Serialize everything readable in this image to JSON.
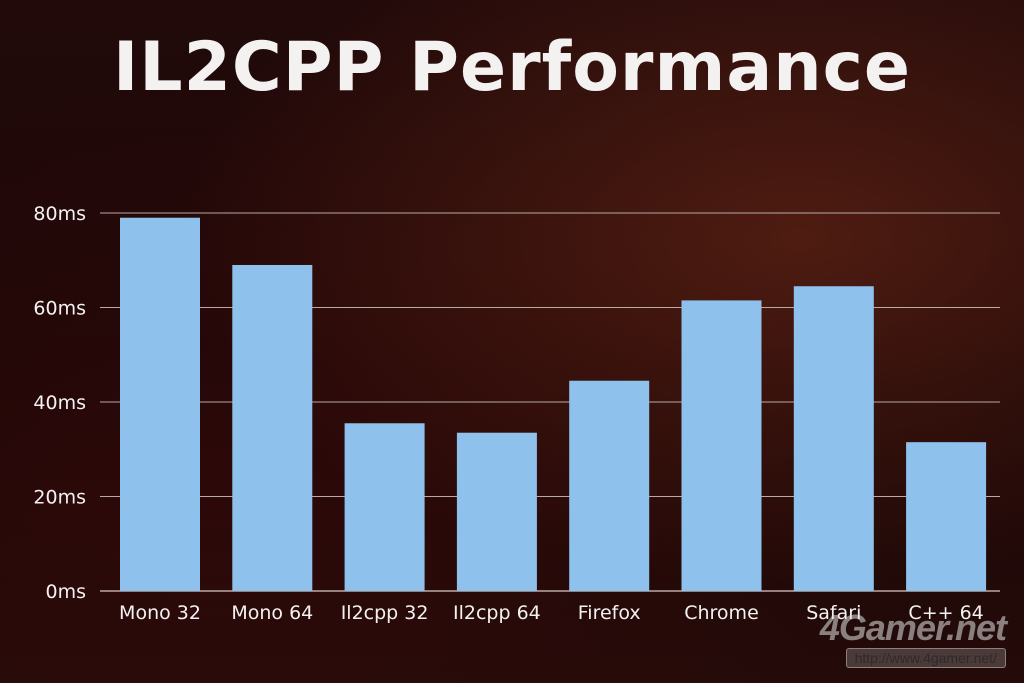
{
  "title": "IL2CPP Performance",
  "watermark": {
    "logo": "4Gamer.net",
    "url": "http://www.4gamer.net/"
  },
  "colors": {
    "bar": "#8ec2ec",
    "grid": "#b9a9a7",
    "text": "#f4f1f1"
  },
  "chart_data": {
    "type": "bar",
    "title": "IL2CPP Performance",
    "xlabel": "",
    "ylabel": "",
    "categories": [
      "Mono 32",
      "Mono 64",
      "Il2cpp 32",
      "Il2cpp 64",
      "Firefox",
      "Chrome",
      "Safari",
      "C++ 64"
    ],
    "values": [
      79,
      69,
      35.5,
      33.5,
      44.5,
      61.5,
      64.5,
      31.5
    ],
    "ylim": [
      0,
      80
    ],
    "yticks": [
      0,
      20,
      40,
      60,
      80
    ],
    "ytick_labels": [
      "0ms",
      "20ms",
      "40ms",
      "60ms",
      "80ms"
    ],
    "grid": true,
    "legend": "none"
  }
}
